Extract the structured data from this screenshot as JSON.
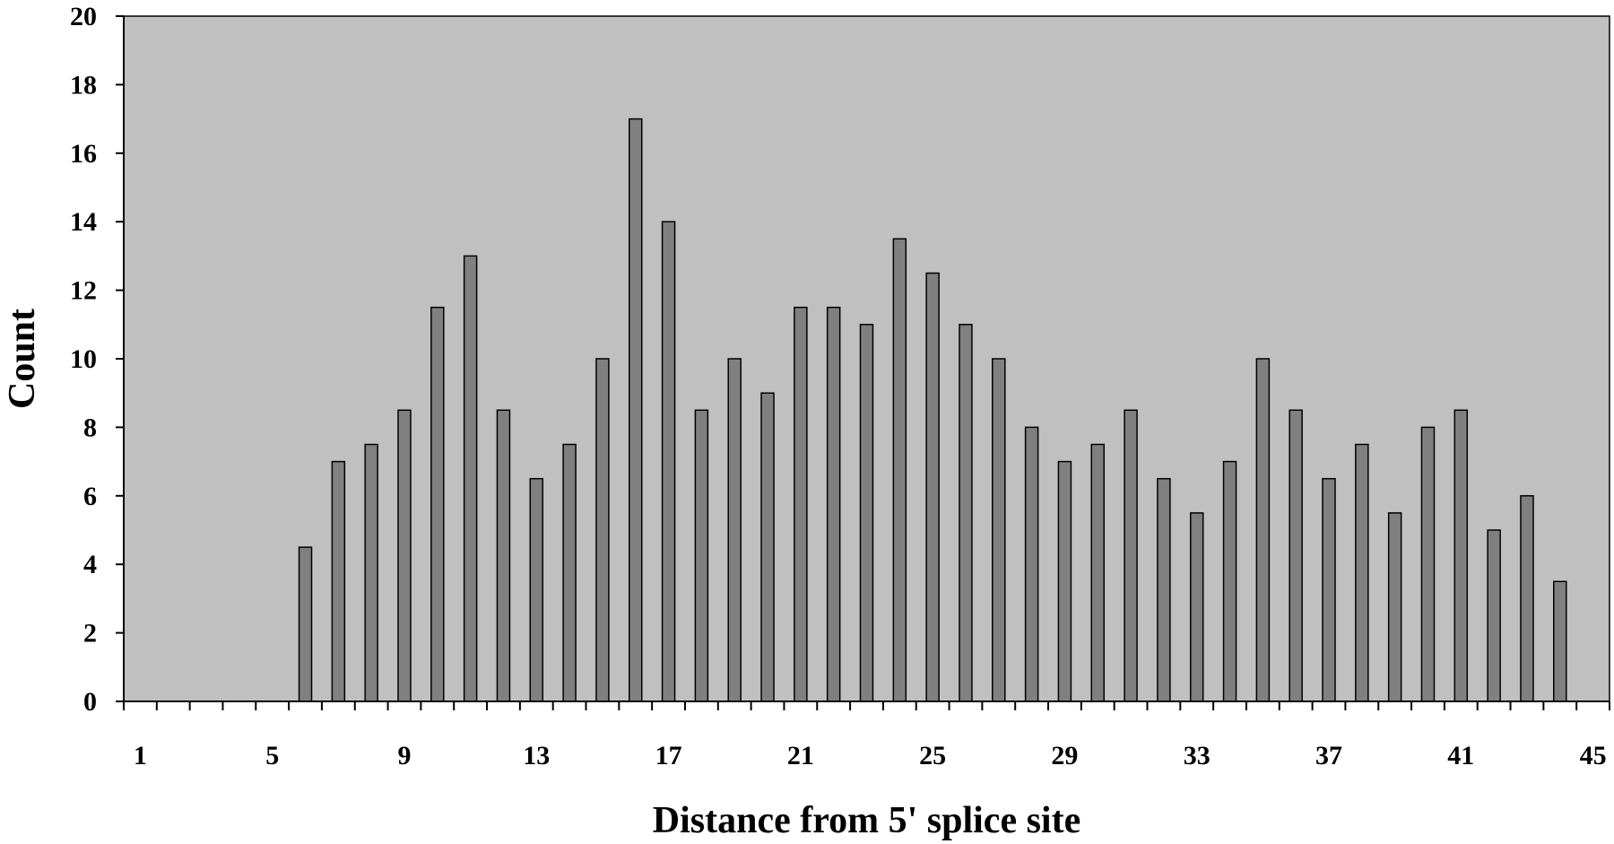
{
  "chart_data": {
    "type": "bar",
    "title": "",
    "xlabel": "Distance from 5' splice site",
    "ylabel": "Count",
    "ylim": [
      0,
      20
    ],
    "yticks": [
      0,
      2,
      4,
      6,
      8,
      10,
      12,
      14,
      16,
      18,
      20
    ],
    "xlim": [
      1,
      45
    ],
    "xtick_labels": [
      "1",
      "5",
      "9",
      "13",
      "17",
      "21",
      "25",
      "29",
      "33",
      "37",
      "41",
      "45"
    ],
    "grid": false,
    "legend": "none",
    "categories": [
      6,
      7,
      8,
      9,
      10,
      11,
      12,
      13,
      14,
      15,
      16,
      17,
      18,
      19,
      20,
      21,
      22,
      23,
      24,
      25,
      26,
      27,
      28,
      29,
      30,
      31,
      32,
      33,
      34,
      35,
      36,
      37,
      38,
      39,
      40,
      41,
      42,
      43,
      44
    ],
    "values": [
      4.5,
      7,
      7.5,
      8.5,
      11.5,
      13,
      8.5,
      6.5,
      7.5,
      10,
      17,
      14,
      8.5,
      10,
      9,
      11.5,
      11.5,
      11,
      13.5,
      12.5,
      11,
      10,
      8,
      7,
      7.5,
      8.5,
      6.5,
      5.5,
      7,
      10,
      8.5,
      6.5,
      7.5,
      5.5,
      8,
      8.5,
      5,
      6,
      3.5
    ],
    "colors": {
      "plot_background": "#c0c0c0",
      "bar_fill": "#808080",
      "bar_stroke": "#000000"
    }
  }
}
